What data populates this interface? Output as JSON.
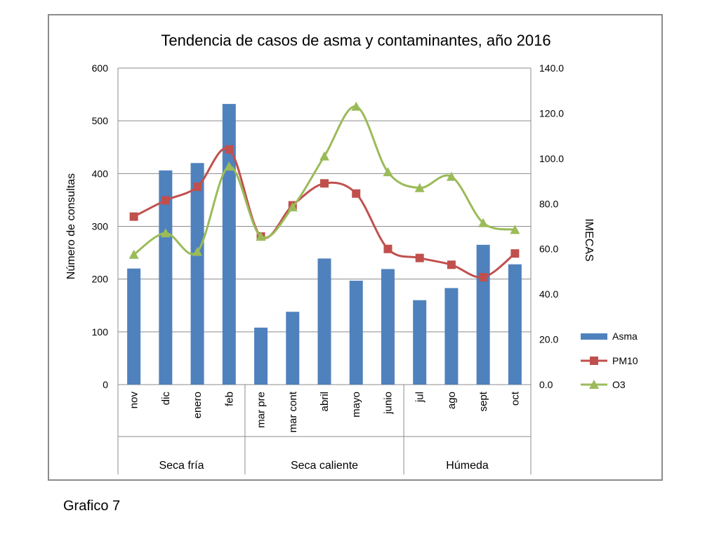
{
  "caption": "Grafico 7",
  "colors": {
    "asma": "#4f81bd",
    "pm10": "#c0504d",
    "o3": "#9bbb59",
    "grid": "#8c8c8c",
    "frame": "#8c8c8c"
  },
  "chart_data": {
    "type": "bar",
    "title": "Tendencia de casos de asma y contaminantes, año 2016",
    "ylabel": "Número de consultas",
    "y2label": "IMECAS",
    "ylim": [
      0,
      600
    ],
    "y2lim": [
      0,
      140
    ],
    "yticks": [
      "0",
      "100",
      "200",
      "300",
      "400",
      "500",
      "600"
    ],
    "y2ticks": [
      "0.0",
      "20.0",
      "40.0",
      "60.0",
      "80.0",
      "100.0",
      "120.0",
      "140.0"
    ],
    "categories": [
      "nov",
      "dic",
      "enero",
      "feb",
      "mar pre",
      "mar cont",
      "abril",
      "mayo",
      "junio",
      "jul",
      "ago",
      "sept",
      "oct"
    ],
    "groups": [
      {
        "label": "Seca fría",
        "start": 0,
        "end": 3
      },
      {
        "label": "Seca caliente",
        "start": 4,
        "end": 8
      },
      {
        "label": "Húmeda",
        "start": 9,
        "end": 12
      }
    ],
    "series": [
      {
        "name": "Asma",
        "kind": "bar",
        "axis": "left",
        "values": [
          220,
          406,
          420,
          532,
          108,
          138,
          239,
          197,
          219,
          160,
          183,
          265,
          228
        ]
      },
      {
        "name": "PM10",
        "kind": "line",
        "axis": "right",
        "marker": "square",
        "values": [
          74.3,
          81.5,
          87.5,
          104.0,
          65.5,
          79.3,
          89.0,
          84.5,
          60.0,
          56.0,
          53.0,
          47.5,
          58.0
        ]
      },
      {
        "name": "O3",
        "kind": "line",
        "axis": "right",
        "marker": "triangle",
        "values": [
          57.5,
          67.0,
          58.8,
          96.5,
          65.5,
          78.5,
          101.0,
          123.0,
          94.0,
          87.0,
          92.0,
          71.5,
          68.5
        ]
      }
    ],
    "legend": "right",
    "grid": true
  }
}
